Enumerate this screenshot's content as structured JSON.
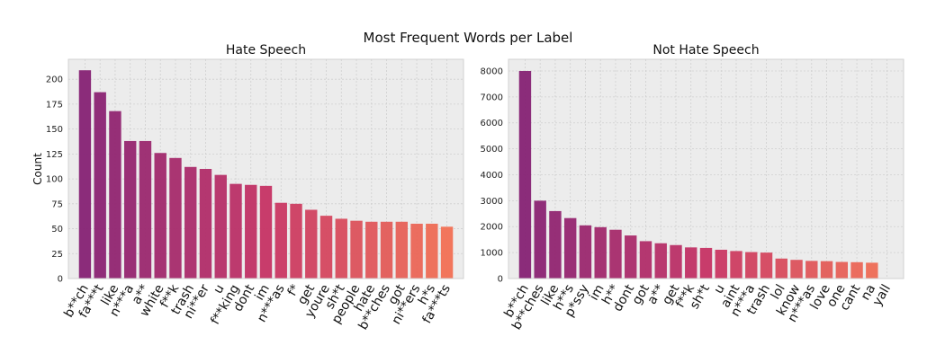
{
  "figure": {
    "suptitle": "Most Frequent Words per Label"
  },
  "chart_data": [
    {
      "type": "bar",
      "title": "Hate Speech",
      "xlabel": "",
      "ylabel": "Count",
      "ylim": [
        0,
        220
      ],
      "yticks": [
        0,
        25,
        50,
        75,
        100,
        125,
        150,
        175,
        200
      ],
      "grid": true,
      "categories": [
        "b**ch",
        "fa***t",
        "like",
        "n***a",
        "a**",
        "white",
        "f**k",
        "trash",
        "ni**er",
        "u",
        "f**king",
        "dont",
        "im",
        "n***as",
        "f*",
        "get",
        "youre",
        "sh*t",
        "people",
        "hate",
        "b**ches",
        "got",
        "ni**ers",
        "h*s",
        "fa***ts"
      ],
      "values": [
        209,
        187,
        168,
        138,
        138,
        126,
        121,
        112,
        110,
        104,
        95,
        94,
        93,
        76,
        75,
        69,
        63,
        60,
        58,
        57,
        57,
        57,
        55,
        55,
        52
      ]
    },
    {
      "type": "bar",
      "title": "Not Hate Speech",
      "xlabel": "",
      "ylabel": "",
      "ylim": [
        0,
        8450
      ],
      "yticks": [
        0,
        1000,
        2000,
        3000,
        4000,
        5000,
        6000,
        7000,
        8000
      ],
      "grid": true,
      "categories": [
        "b**ch",
        "b**ches",
        "like",
        "h**s",
        "p*ssy",
        "im",
        "h**",
        "dont",
        "got",
        "a**",
        "get",
        "f**k",
        "sh*t",
        "u",
        "aint",
        "n***a",
        "trash",
        "lol",
        "know",
        "n***as",
        "love",
        "one",
        "cant",
        "na",
        "yall"
      ],
      "values": [
        8000,
        3000,
        2600,
        2330,
        2050,
        1980,
        1880,
        1660,
        1440,
        1360,
        1290,
        1200,
        1180,
        1110,
        1060,
        1020,
        1000,
        770,
        720,
        680,
        670,
        640,
        630,
        610,
        0
      ]
    }
  ]
}
